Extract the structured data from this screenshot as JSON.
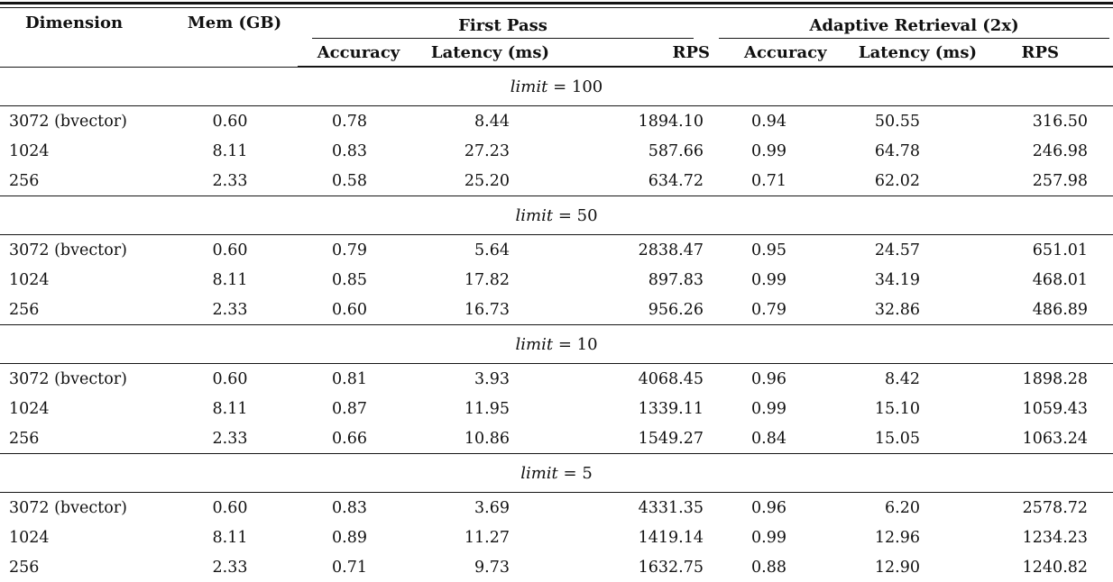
{
  "table": {
    "columns": {
      "dimension": "Dimension",
      "mem": "Mem (GB)",
      "first_pass_group": "First Pass",
      "adaptive_group": "Adaptive Retrieval (2x)",
      "sub": [
        "Accuracy",
        "Latency (ms)",
        "RPS",
        "Accuracy",
        "Latency (ms)",
        "RPS"
      ]
    },
    "sections": [
      {
        "limit_word": "limit",
        "limit_eq": "= 100",
        "rows": [
          {
            "dimension": "3072 (bvector)",
            "mem": "0.60",
            "fp_acc": "0.78",
            "fp_lat": "8.44",
            "fp_rps": "1894.10",
            "ar_acc": "0.94",
            "ar_lat": "50.55",
            "ar_rps": "316.50"
          },
          {
            "dimension": "1024",
            "mem": "8.11",
            "fp_acc": "0.83",
            "fp_lat": "27.23",
            "fp_rps": "587.66",
            "ar_acc": "0.99",
            "ar_lat": "64.78",
            "ar_rps": "246.98"
          },
          {
            "dimension": "256",
            "mem": "2.33",
            "fp_acc": "0.58",
            "fp_lat": "25.20",
            "fp_rps": "634.72",
            "ar_acc": "0.71",
            "ar_lat": "62.02",
            "ar_rps": "257.98"
          }
        ]
      },
      {
        "limit_word": "limit",
        "limit_eq": "= 50",
        "rows": [
          {
            "dimension": "3072 (bvector)",
            "mem": "0.60",
            "fp_acc": "0.79",
            "fp_lat": "5.64",
            "fp_rps": "2838.47",
            "ar_acc": "0.95",
            "ar_lat": "24.57",
            "ar_rps": "651.01"
          },
          {
            "dimension": "1024",
            "mem": "8.11",
            "fp_acc": "0.85",
            "fp_lat": "17.82",
            "fp_rps": "897.83",
            "ar_acc": "0.99",
            "ar_lat": "34.19",
            "ar_rps": "468.01"
          },
          {
            "dimension": "256",
            "mem": "2.33",
            "fp_acc": "0.60",
            "fp_lat": "16.73",
            "fp_rps": "956.26",
            "ar_acc": "0.79",
            "ar_lat": "32.86",
            "ar_rps": "486.89"
          }
        ]
      },
      {
        "limit_word": "limit",
        "limit_eq": "= 10",
        "rows": [
          {
            "dimension": "3072 (bvector)",
            "mem": "0.60",
            "fp_acc": "0.81",
            "fp_lat": "3.93",
            "fp_rps": "4068.45",
            "ar_acc": "0.96",
            "ar_lat": "8.42",
            "ar_rps": "1898.28"
          },
          {
            "dimension": "1024",
            "mem": "8.11",
            "fp_acc": "0.87",
            "fp_lat": "11.95",
            "fp_rps": "1339.11",
            "ar_acc": "0.99",
            "ar_lat": "15.10",
            "ar_rps": "1059.43"
          },
          {
            "dimension": "256",
            "mem": "2.33",
            "fp_acc": "0.66",
            "fp_lat": "10.86",
            "fp_rps": "1549.27",
            "ar_acc": "0.84",
            "ar_lat": "15.05",
            "ar_rps": "1063.24"
          }
        ]
      },
      {
        "limit_word": "limit",
        "limit_eq": "= 5",
        "rows": [
          {
            "dimension": "3072 (bvector)",
            "mem": "0.60",
            "fp_acc": "0.83",
            "fp_lat": "3.69",
            "fp_rps": "4331.35",
            "ar_acc": "0.96",
            "ar_lat": "6.20",
            "ar_rps": "2578.72"
          },
          {
            "dimension": "1024",
            "mem": "8.11",
            "fp_acc": "0.89",
            "fp_lat": "11.27",
            "fp_rps": "1419.14",
            "ar_acc": "0.99",
            "ar_lat": "12.96",
            "ar_rps": "1234.23"
          },
          {
            "dimension": "256",
            "mem": "2.33",
            "fp_acc": "0.71",
            "fp_lat": "9.73",
            "fp_rps": "1632.75",
            "ar_acc": "0.88",
            "ar_lat": "12.90",
            "ar_rps": "1240.82"
          }
        ]
      }
    ],
    "colors": {
      "text": "#111111",
      "rule": "#151515",
      "background": "#ffffff"
    }
  }
}
